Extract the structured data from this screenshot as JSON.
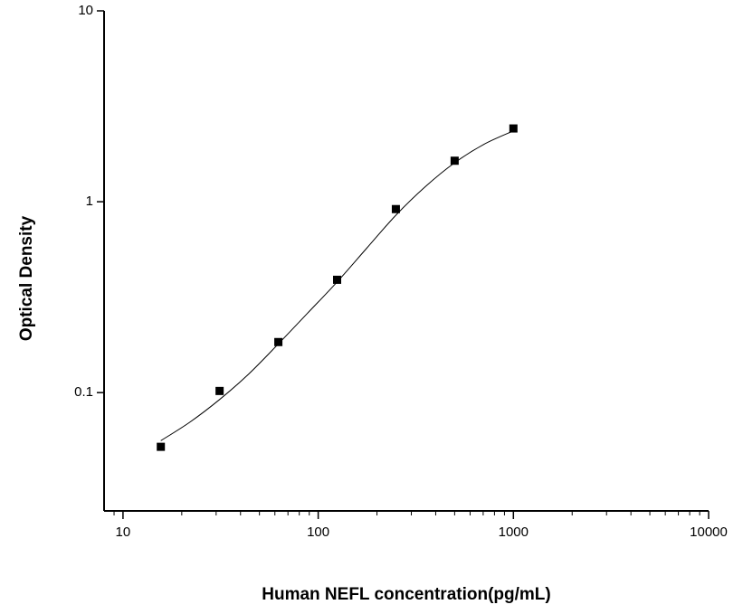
{
  "chart_data": {
    "type": "scatter",
    "x_label": "Human NEFL concentration(pg/mL)",
    "y_label": "Optical Density",
    "x": [
      15.625,
      31.25,
      62.5,
      125,
      250,
      500,
      1000
    ],
    "values": [
      0.052,
      0.102,
      0.184,
      0.39,
      0.915,
      1.64,
      2.42
    ],
    "color": "#000000",
    "curve": {
      "x": [
        15.625,
        22,
        31.25,
        44,
        62.5,
        88,
        125,
        177,
        250,
        354,
        500,
        707,
        1000
      ],
      "values": [
        0.056,
        0.07,
        0.092,
        0.125,
        0.18,
        0.26,
        0.38,
        0.57,
        0.85,
        1.2,
        1.6,
        2.0,
        2.35
      ]
    },
    "x_log": true,
    "y_log": true,
    "xlim": [
      8,
      10000
    ],
    "ylim": [
      0.024,
      10
    ],
    "xticks": [
      10,
      100,
      1000,
      10000
    ],
    "xminorticks": [
      9,
      20,
      30,
      40,
      50,
      60,
      70,
      80,
      90,
      200,
      300,
      400,
      500,
      600,
      700,
      800,
      900,
      2000,
      3000,
      4000,
      5000,
      6000,
      7000,
      8000,
      9000
    ],
    "yticks": [
      0.1,
      1,
      10
    ],
    "grid": false
  }
}
